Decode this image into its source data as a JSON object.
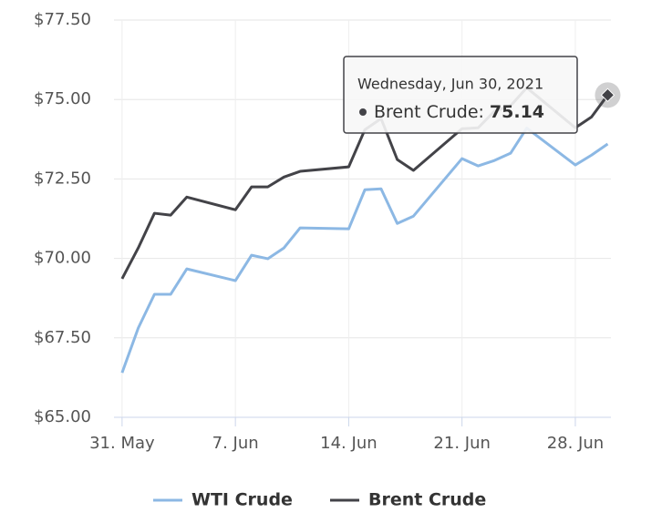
{
  "chart_data": {
    "type": "line",
    "x": [
      0,
      1,
      2,
      3,
      4,
      7,
      8,
      9,
      10,
      11,
      14,
      15,
      16,
      17,
      18,
      21,
      22,
      23,
      24,
      25,
      28,
      29,
      30
    ],
    "series": [
      {
        "name": "WTI Crude",
        "color": "#8cb8e4",
        "values": [
          66.4,
          67.81,
          68.87,
          68.87,
          69.67,
          69.3,
          70.1,
          69.99,
          70.33,
          70.96,
          70.93,
          72.16,
          72.19,
          71.1,
          71.33,
          73.14,
          72.91,
          73.08,
          73.31,
          74.1,
          72.94,
          73.25,
          73.6
        ]
      },
      {
        "name": "Brent Crude",
        "color": "#434348",
        "values": [
          69.36,
          70.33,
          71.42,
          71.36,
          71.93,
          71.53,
          72.25,
          72.25,
          72.56,
          72.74,
          72.88,
          74.05,
          74.4,
          73.11,
          72.77,
          74.08,
          74.11,
          74.63,
          74.8,
          75.37,
          74.11,
          74.45,
          75.14
        ]
      }
    ],
    "xlim": [
      -0.5,
      30.2
    ],
    "xticks": [
      {
        "value": 0,
        "label": "31. May"
      },
      {
        "value": 7,
        "label": "7. Jun"
      },
      {
        "value": 14,
        "label": "14. Jun"
      },
      {
        "value": 21,
        "label": "21. Jun"
      },
      {
        "value": 28,
        "label": "28. Jun"
      }
    ],
    "ylim": [
      65,
      77.5
    ],
    "yticks": [
      {
        "value": 65,
        "label": "$65.00"
      },
      {
        "value": 67.5,
        "label": "$67.50"
      },
      {
        "value": 70,
        "label": "$70.00"
      },
      {
        "value": 72.5,
        "label": "$72.50"
      },
      {
        "value": 75,
        "label": "$75.00"
      },
      {
        "value": 77.5,
        "label": "$77.50"
      }
    ],
    "grid": true,
    "legend": "bottom",
    "tooltip": {
      "title": "Wednesday, Jun 30, 2021",
      "series_label": "Brent Crude:"
    }
  }
}
